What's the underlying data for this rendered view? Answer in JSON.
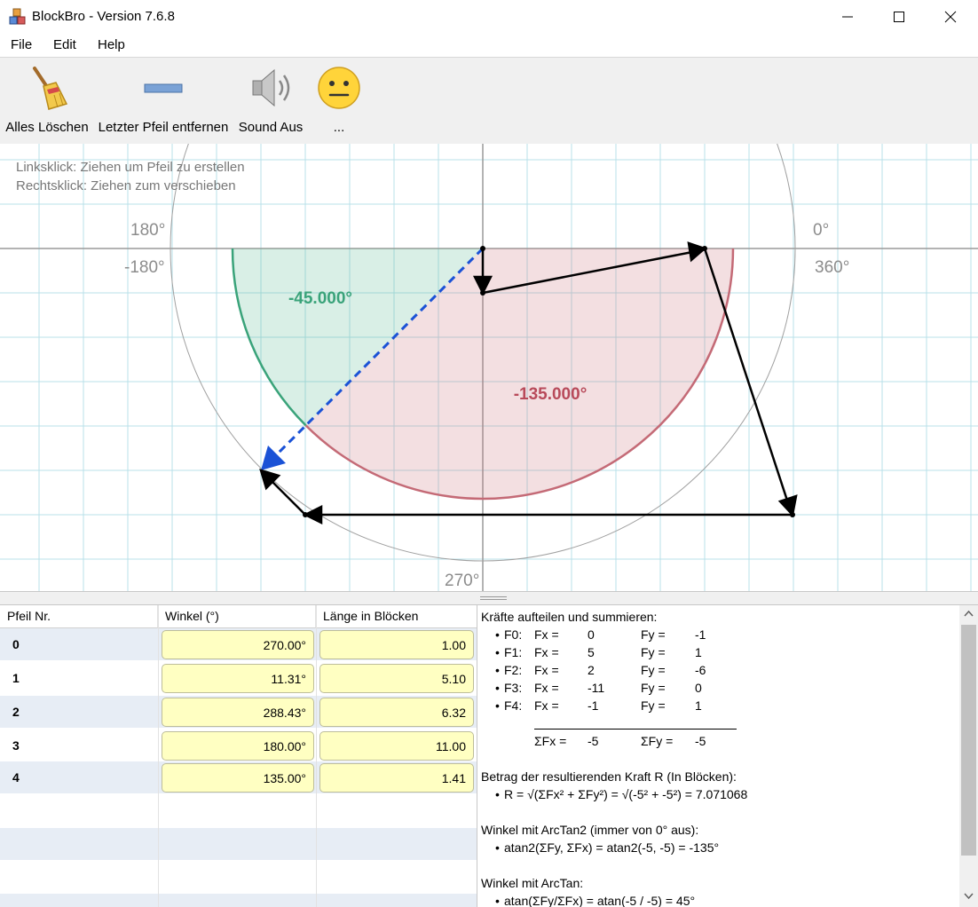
{
  "window": {
    "title": "BlockBro - Version 7.6.8",
    "icon": "cubes-icon"
  },
  "menu": {
    "items": [
      "File",
      "Edit",
      "Help"
    ]
  },
  "toolbar": {
    "tools": [
      {
        "label": "Alles Löschen",
        "icon": "broom-icon"
      },
      {
        "label": "Letzter Pfeil entfernen",
        "icon": "bar-icon"
      },
      {
        "label": "Sound Aus",
        "icon": "speaker-icon"
      },
      {
        "label": "...",
        "icon": "smiley-icon"
      }
    ]
  },
  "canvas": {
    "hint_left": "Linksklick: Ziehen um Pfeil zu erstellen",
    "hint_right": "Rechtsklick: Ziehen zum verschieben",
    "labels": {
      "deg_180": "180°",
      "deg_neg180": "-180°",
      "deg_0": "0°",
      "deg_360": "360°",
      "deg_270": "270°"
    },
    "angle_green": "-45.000°",
    "angle_red": "-135.000°",
    "colors": {
      "green": "#2e9e6e",
      "red": "#b84a5a",
      "grid": "#b8e0ea",
      "blue": "#1a52d6"
    }
  },
  "table": {
    "headers": [
      "Pfeil Nr.",
      "Winkel (°)",
      "Länge in Blöcken"
    ],
    "rows": [
      {
        "nr": "0",
        "angle": "270.00°",
        "length": "1.00"
      },
      {
        "nr": "1",
        "angle": "11.31°",
        "length": "5.10"
      },
      {
        "nr": "2",
        "angle": "288.43°",
        "length": "6.32"
      },
      {
        "nr": "3",
        "angle": "180.00°",
        "length": "11.00"
      },
      {
        "nr": "4",
        "angle": "135.00°",
        "length": "1.41"
      }
    ]
  },
  "results": {
    "heading1": "Kräfte aufteilen und summieren:",
    "forces": [
      {
        "name": "F0:",
        "fx_label": "Fx =",
        "fx": "0",
        "fy_label": "Fy =",
        "fy": "-1"
      },
      {
        "name": "F1:",
        "fx_label": "Fx =",
        "fx": "5",
        "fy_label": "Fy =",
        "fy": "1"
      },
      {
        "name": "F2:",
        "fx_label": "Fx =",
        "fx": "2",
        "fy_label": "Fy =",
        "fy": "-6"
      },
      {
        "name": "F3:",
        "fx_label": "Fx =",
        "fx": "-11",
        "fy_label": "Fy =",
        "fy": "0"
      },
      {
        "name": "F4:",
        "fx_label": "Fx =",
        "fx": "-1",
        "fy_label": "Fy =",
        "fy": "1"
      }
    ],
    "sum_fx_label": "ΣFx =",
    "sum_fx": "-5",
    "sum_fy_label": "ΣFy =",
    "sum_fy": "-5",
    "heading2": "Betrag der resultierenden Kraft R (In Blöcken):",
    "r_formula": "R = √(ΣFx² + ΣFy²) = √(-5² + -5²) = 7.071068",
    "heading3": "Winkel mit ArcTan2 (immer von 0° aus):",
    "atan2_formula": "atan2(ΣFy, ΣFx) = atan2(-5, -5) = -135°",
    "heading4": "Winkel mit ArcTan:",
    "atan_formula": "atan(ΣFy/ΣFx) = atan(-5 / -5) = 45°"
  }
}
